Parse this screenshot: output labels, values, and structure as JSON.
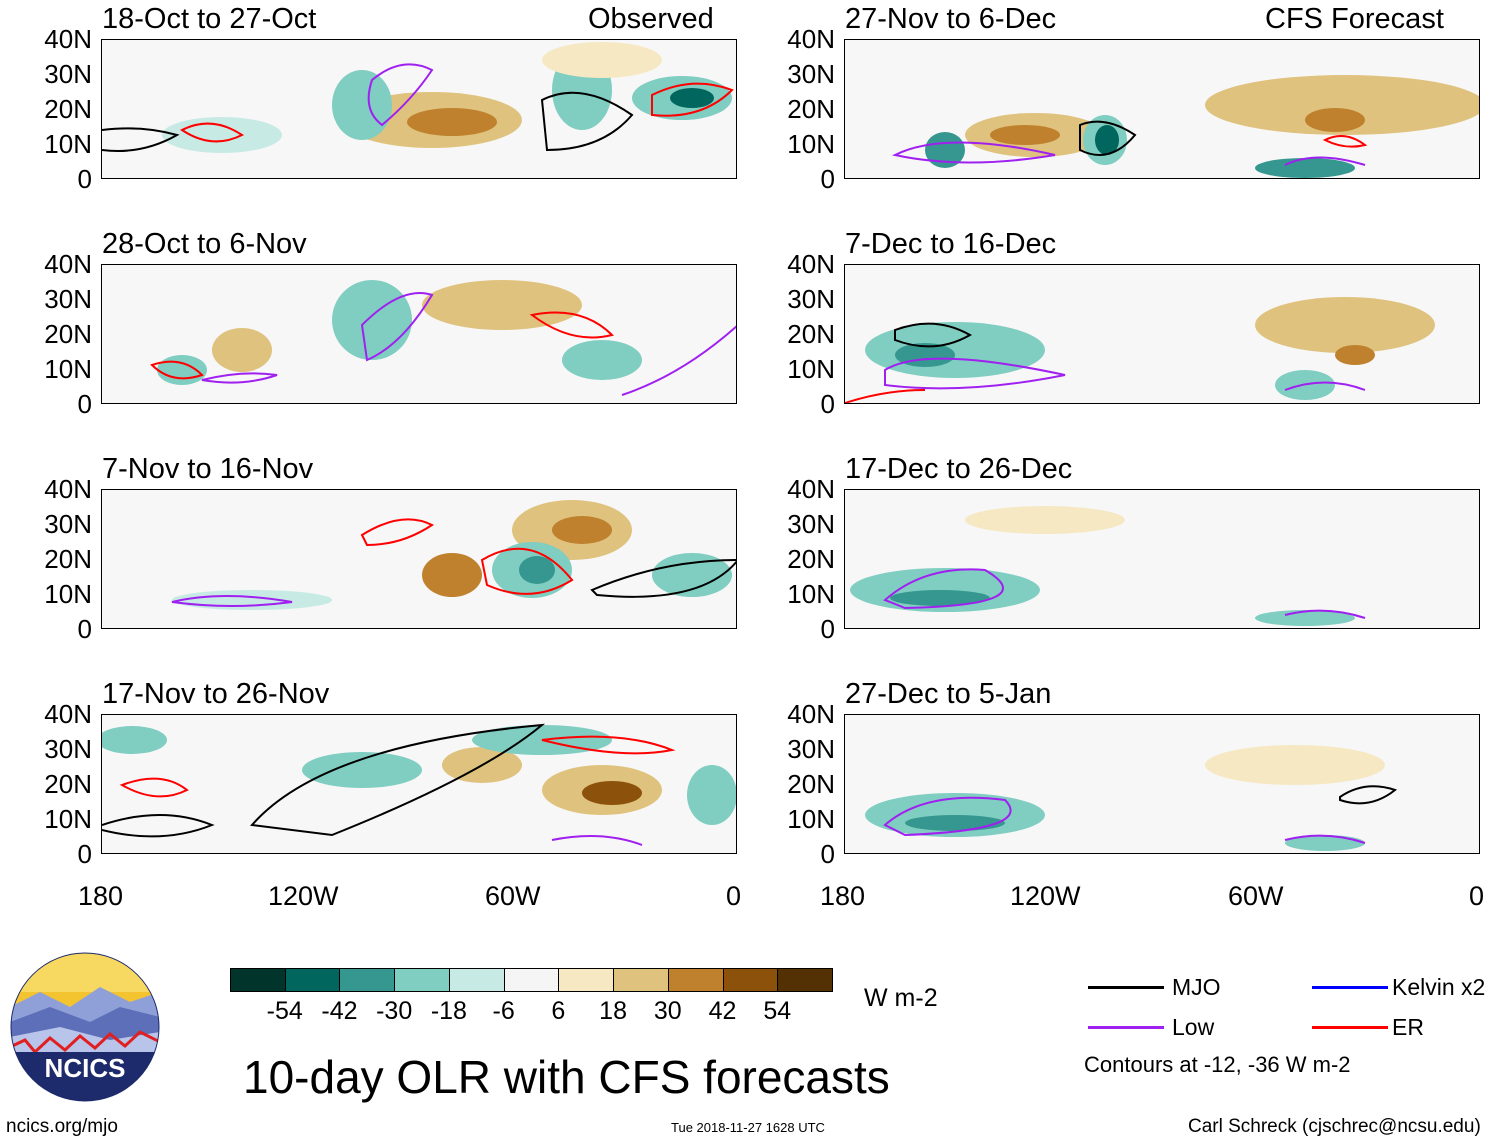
{
  "header": {
    "left_label": "Observed",
    "right_label": "CFS Forecast"
  },
  "panels_left": [
    {
      "period": "18-Oct to 27-Oct"
    },
    {
      "period": "28-Oct to 6-Nov"
    },
    {
      "period": "7-Nov to 16-Nov"
    },
    {
      "period": "17-Nov to 26-Nov"
    }
  ],
  "panels_right": [
    {
      "period": "27-Nov to 6-Dec"
    },
    {
      "period": "7-Dec to 16-Dec"
    },
    {
      "period": "17-Dec to 26-Dec"
    },
    {
      "period": "27-Dec to 5-Jan"
    }
  ],
  "axes": {
    "lat_ticks": [
      "40N",
      "30N",
      "20N",
      "10N",
      "0"
    ],
    "lon_ticks": [
      "180",
      "120W",
      "60W",
      "0"
    ]
  },
  "colorbar": {
    "unit": "W m-2",
    "labels": [
      "-54",
      "-42",
      "-30",
      "-18",
      "-6",
      "6",
      "18",
      "30",
      "42",
      "54"
    ],
    "colors": [
      "#01352b",
      "#01665e",
      "#35978f",
      "#80cdc1",
      "#c7eae5",
      "#f5f5f5",
      "#f6e8c3",
      "#dfc27d",
      "#bf812d",
      "#8c510a",
      "#543005"
    ]
  },
  "legend": {
    "items": [
      {
        "label": "MJO",
        "color": "#000000"
      },
      {
        "label": "Kelvin x2",
        "color": "#0000ff"
      },
      {
        "label": "Low",
        "color": "#a020f0"
      },
      {
        "label": "ER",
        "color": "#ff0000"
      }
    ],
    "note": "Contours at -12, -36 W m-2"
  },
  "title": "10-day OLR with CFS forecasts",
  "logo_text": "NCICS",
  "footer": {
    "url": "ncics.org/mjo",
    "timestamp": "Tue 2018-11-27 1628 UTC",
    "credit": "Carl Schreck (cjschrec@ncsu.edu)"
  }
}
